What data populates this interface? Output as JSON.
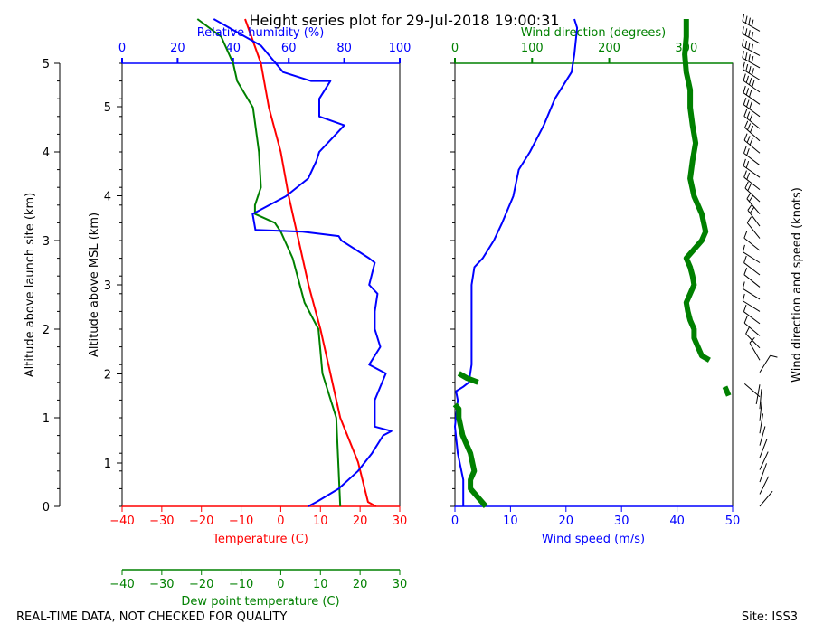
{
  "title": "Height series plot for 29-Jul-2018 19:00:31",
  "footer_left": "REAL-TIME DATA, NOT CHECKED FOR QUALITY",
  "footer_right": "Site: ISS3",
  "colors": {
    "temperature": "#ff0000",
    "dewpoint": "#008000",
    "rh": "#0000ff",
    "wind_speed": "#0000ff",
    "wind_dir": "#008000",
    "barbs": "#000000"
  },
  "chart_data": [
    {
      "type": "line",
      "left_axis_label": "Altitude above launch site (km)",
      "left_axis_ticks": [
        "0",
        "1",
        "2",
        "3",
        "4",
        "5"
      ],
      "inner_axis_label": "Altitude above MSL (km)",
      "inner_axis_ticks": [
        "1",
        "2",
        "3",
        "4",
        "5"
      ],
      "y_range_km_launch": [
        0,
        5
      ],
      "temp_axis": {
        "label": "Temperature (C)",
        "ticks": [
          "−40",
          "−30",
          "−20",
          "−10",
          "0",
          "10",
          "20",
          "30"
        ],
        "range": [
          -40,
          30
        ]
      },
      "dew_axis": {
        "label": "Dew point temperature (C)",
        "ticks": [
          "−40",
          "−30",
          "−20",
          "−10",
          "0",
          "10",
          "20",
          "30"
        ],
        "range": [
          -40,
          30
        ]
      },
      "rh_axis": {
        "label": "Relative humidity (%)",
        "ticks": [
          "0",
          "20",
          "40",
          "60",
          "80",
          "100"
        ],
        "range": [
          0,
          100
        ]
      },
      "series": [
        {
          "key": "temperature",
          "points": [
            [
              0.0,
              24.0
            ],
            [
              0.05,
              22.0
            ],
            [
              0.5,
              19.5
            ],
            [
              1.0,
              15.0
            ],
            [
              1.5,
              12.5
            ],
            [
              2.0,
              10.0
            ],
            [
              2.5,
              7.0
            ],
            [
              3.0,
              4.5
            ],
            [
              3.5,
              2.0
            ],
            [
              4.0,
              0.0
            ],
            [
              4.5,
              -3.0
            ],
            [
              5.0,
              -5.0
            ],
            [
              5.5,
              -9.0
            ]
          ]
        },
        {
          "key": "dewpoint",
          "points": [
            [
              0.0,
              15.0
            ],
            [
              0.5,
              14.5
            ],
            [
              1.0,
              14.0
            ],
            [
              1.5,
              10.5
            ],
            [
              2.0,
              9.5
            ],
            [
              2.3,
              6.0
            ],
            [
              2.8,
              3.0
            ],
            [
              3.0,
              1.0
            ],
            [
              3.1,
              0.0
            ],
            [
              3.2,
              -1.5
            ],
            [
              3.3,
              -6.5
            ],
            [
              3.4,
              -6.5
            ],
            [
              3.6,
              -5.0
            ],
            [
              4.0,
              -5.5
            ],
            [
              4.5,
              -7.0
            ],
            [
              4.8,
              -11.0
            ],
            [
              5.0,
              -12.0
            ],
            [
              5.3,
              -15.0
            ],
            [
              5.5,
              -21.0
            ]
          ]
        },
        {
          "key": "rh",
          "points": [
            [
              0.0,
              67
            ],
            [
              0.05,
              70
            ],
            [
              0.2,
              78
            ],
            [
              0.4,
              85
            ],
            [
              0.6,
              90
            ],
            [
              0.8,
              94
            ],
            [
              0.85,
              97
            ],
            [
              0.9,
              91
            ],
            [
              1.2,
              91
            ],
            [
              1.5,
              95
            ],
            [
              1.6,
              89
            ],
            [
              1.8,
              93
            ],
            [
              2.0,
              91
            ],
            [
              2.2,
              91
            ],
            [
              2.4,
              92
            ],
            [
              2.5,
              89
            ],
            [
              2.75,
              91
            ],
            [
              2.8,
              89
            ],
            [
              3.0,
              79
            ],
            [
              3.05,
              78
            ],
            [
              3.1,
              65
            ],
            [
              3.12,
              48
            ],
            [
              3.3,
              47
            ],
            [
              3.5,
              59
            ],
            [
              3.7,
              67
            ],
            [
              3.9,
              70
            ],
            [
              4.0,
              71
            ],
            [
              4.2,
              77
            ],
            [
              4.3,
              80
            ],
            [
              4.4,
              71
            ],
            [
              4.6,
              71
            ],
            [
              4.8,
              75
            ],
            [
              4.8,
              68
            ],
            [
              4.9,
              58
            ],
            [
              5.2,
              50
            ],
            [
              5.5,
              33
            ]
          ]
        }
      ]
    },
    {
      "type": "line",
      "speed_axis": {
        "label": "Wind speed (m/s)",
        "ticks": [
          "0",
          "10",
          "20",
          "30",
          "40",
          "50"
        ],
        "range": [
          0,
          50
        ]
      },
      "dir_axis": {
        "label": "Wind direction (degrees)",
        "ticks": [
          "0",
          "100",
          "200",
          "300"
        ],
        "range": [
          0,
          360
        ]
      },
      "barb_label": "Wind direction and speed (knots)",
      "series": [
        {
          "key": "wind_speed",
          "points": [
            [
              0.0,
              1.5
            ],
            [
              0.3,
              1.5
            ],
            [
              0.6,
              0.5
            ],
            [
              0.9,
              0.0
            ],
            [
              1.2,
              0.5
            ],
            [
              1.3,
              0.2
            ],
            [
              1.35,
              1.5
            ],
            [
              1.4,
              2.5
            ],
            [
              1.6,
              3.0
            ],
            [
              1.8,
              3.0
            ],
            [
              2.0,
              3.0
            ],
            [
              2.5,
              3.0
            ],
            [
              2.7,
              3.5
            ],
            [
              2.8,
              5.0
            ],
            [
              3.0,
              7.0
            ],
            [
              3.2,
              8.5
            ],
            [
              3.5,
              10.5
            ],
            [
              3.8,
              11.5
            ],
            [
              4.0,
              13.5
            ],
            [
              4.3,
              16.0
            ],
            [
              4.6,
              18.0
            ],
            [
              4.9,
              21.0
            ],
            [
              5.1,
              21.5
            ],
            [
              5.4,
              22.0
            ],
            [
              5.5,
              21.5
            ]
          ]
        },
        {
          "key": "wind_dir",
          "points": [
            [
              0.0,
              40
            ],
            [
              0.1,
              30
            ],
            [
              0.2,
              20
            ],
            [
              0.3,
              20
            ],
            [
              0.4,
              25
            ],
            [
              0.6,
              20
            ],
            [
              0.8,
              10
            ],
            [
              1.0,
              5
            ],
            [
              1.1,
              5
            ],
            [
              1.15,
              0
            ],
            [
              1.25,
              355
            ],
            [
              1.35,
              350
            ],
            [
              1.4,
              30
            ],
            [
              1.45,
              15
            ],
            [
              1.5,
              5
            ],
            [
              1.65,
              330
            ],
            [
              1.7,
              320
            ],
            [
              1.8,
              315
            ],
            [
              1.9,
              310
            ],
            [
              2.0,
              310
            ],
            [
              2.1,
              305
            ],
            [
              2.2,
              302
            ],
            [
              2.3,
              300
            ],
            [
              2.4,
              305
            ],
            [
              2.5,
              310
            ],
            [
              2.6,
              308
            ],
            [
              2.7,
              305
            ],
            [
              2.8,
              300
            ],
            [
              3.0,
              320
            ],
            [
              3.1,
              325
            ],
            [
              3.3,
              320
            ],
            [
              3.5,
              310
            ],
            [
              3.7,
              305
            ],
            [
              3.9,
              308
            ],
            [
              4.1,
              312
            ],
            [
              4.3,
              308
            ],
            [
              4.5,
              305
            ],
            [
              4.7,
              305
            ],
            [
              4.9,
              300
            ],
            [
              5.1,
              298
            ],
            [
              5.3,
              300
            ],
            [
              5.5,
              300
            ]
          ]
        }
      ]
    }
  ]
}
